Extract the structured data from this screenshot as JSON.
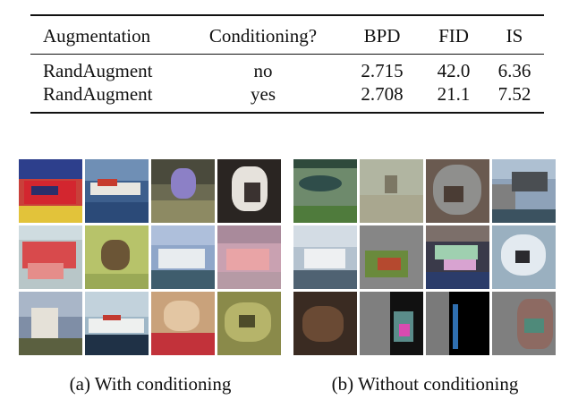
{
  "table": {
    "headers": [
      "Augmentation",
      "Conditioning?",
      "BPD",
      "FID",
      "IS"
    ],
    "rows": [
      [
        "RandAugment",
        "no",
        "2.715",
        "42.0",
        "6.36"
      ],
      [
        "RandAugment",
        "yes",
        "2.708",
        "21.1",
        "7.52"
      ]
    ]
  },
  "captions": {
    "with": "(a) With conditioning",
    "without": "(b) Without conditioning"
  }
}
